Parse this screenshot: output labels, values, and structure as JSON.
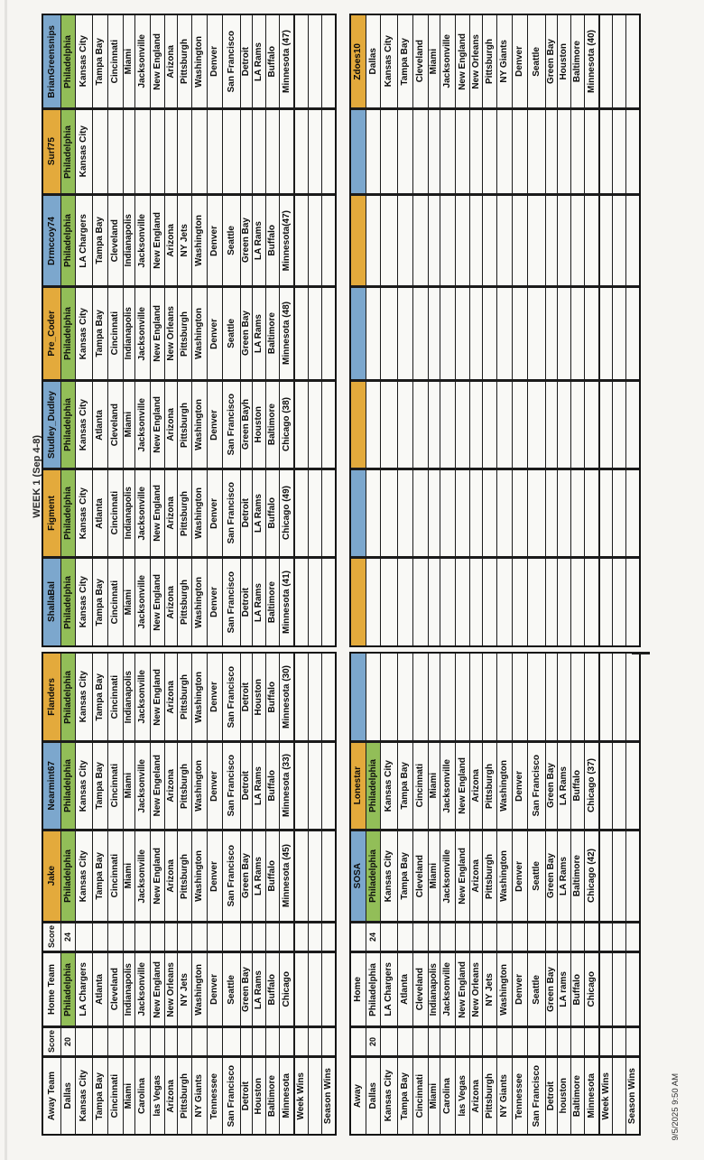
{
  "page": {
    "title": "WEEK 1 (Sep 4-8)",
    "date_stamp": "9/5/2025 9:50 AM"
  },
  "colors": {
    "header_yellow": "#e3aa3c",
    "header_blue": "#7ca7cd",
    "correct_pick_green": "#92be58"
  },
  "winning_team": "Philadelphia",
  "left_pool": {
    "away_label": "Away Team",
    "home_label": "Home Team",
    "score_label": "Score",
    "away_score": "20",
    "home_score": "24",
    "week_wins_label": "Week Wins",
    "season_wins_label": "Season Wins",
    "home_winner_highlighted": true,
    "away_teams": [
      "Dallas",
      "Kansas City",
      "Tampa Bay",
      "Cincinnati",
      "Miami",
      "Carolina",
      "las Vegas",
      "Arizona",
      "Pittsburgh",
      "NY Giants",
      "Tennessee",
      "San Francisco",
      "Detroit",
      "Houston",
      "Baltimore",
      "Minnesota"
    ],
    "home_teams": [
      "Philadelphia",
      "LA Chargers",
      "Atlanta",
      "Cleveland",
      "Indianapolis",
      "Jacksonville",
      "New England",
      "New Orleans",
      "NY Jets",
      "Washington",
      "Denver",
      "Seattle",
      "Green Bay",
      "LA Rams",
      "Buffalo",
      "Chicago"
    ],
    "pickers": [
      {
        "name": "BrianGreensnips",
        "color": "blue",
        "picks": [
          "Philadelphia",
          "Kansas City",
          "Tampa Bay",
          "Cincinnati",
          "Miami",
          "Jacksonville",
          "New England",
          "Arizona",
          "Pittsburgh",
          "Washington",
          "Denver",
          "San Francisco",
          "Detroit",
          "LA Rams",
          "Buffalo",
          "Minnesota (47)"
        ]
      },
      {
        "name": "Surf75",
        "color": "yellow",
        "picks": [
          "Philadelphia",
          "Kansas City",
          "",
          "",
          "",
          "",
          "",
          "",
          "",
          "",
          "",
          "",
          "",
          "",
          "",
          ""
        ]
      },
      {
        "name": "Drmccoy74",
        "color": "blue",
        "picks": [
          "Philadelphia",
          "LA Chargers",
          "Tampa Bay",
          "Cleveland",
          "Indianapolis",
          "Jacksonville",
          "New England",
          "Arizona",
          "NY Jets",
          "Washington",
          "Denver",
          "Seattle",
          "Green Bay",
          "LA Rams",
          "Buffalo",
          "Minnesota(47)"
        ]
      },
      {
        "name": "Pre_Coder",
        "color": "yellow",
        "picks": [
          "Philadelphia",
          "Kansas City",
          "Tampa Bay",
          "Cincinnati",
          "Indianapolis",
          "Jacksonville",
          "New England",
          "New Orleans",
          "Pittsburgh",
          "Washington",
          "Denver",
          "Seattle",
          "Green Bay",
          "LA Rams",
          "Baltimore",
          "Minnesota (48)"
        ]
      },
      {
        "name": "Studley_Dudley",
        "color": "blue",
        "picks": [
          "Philadelphia",
          "Kansas City",
          "Atlanta",
          "Cleveland",
          "Miami",
          "Jacksonville",
          "New England",
          "Arizona",
          "Pittsburgh",
          "Washington",
          "Denver",
          "San Francisco",
          "Green Bayh",
          "Houston",
          "Baltimore",
          "Chicago (38)"
        ]
      },
      {
        "name": "Figment",
        "color": "yellow",
        "picks": [
          "Philadelphia",
          "Kansas City",
          "Atlanta",
          "Cincinnati",
          "Indianapolis",
          "Jacksonville",
          "New England",
          "Arizona",
          "Pittsburgh",
          "Washington",
          "Denver",
          "San Francisco",
          "Detroit",
          "LA Rams",
          "Buffalo",
          "Chicago (49)"
        ]
      },
      {
        "name": "ShallaBal",
        "color": "blue",
        "picks": [
          "Philadelphia",
          "Kansas City",
          "Tampa Bay",
          "Cincinnati",
          "Miami",
          "Jacksonville",
          "New England",
          "Arizona",
          "Pittsburgh",
          "Washington",
          "Denver",
          "San Francisco",
          "Detroit",
          "LA Rams",
          "Baltimore",
          "Minnesota (41)"
        ]
      },
      {
        "name": "Flanders",
        "color": "yellow",
        "picks": [
          "Philadelphia",
          "Kansas City",
          "Tampa Bay",
          "Cincinnati",
          "Indianapolis",
          "Jacksonville",
          "New England",
          "Arizona",
          "Pittsburgh",
          "Washington",
          "Denver",
          "San Francisco",
          "Detroit",
          "Houston",
          "Buffalo",
          "Minnesota (30)"
        ]
      },
      {
        "name": "Nearmint67",
        "color": "blue",
        "picks": [
          "Philadelphia",
          "Kansas City",
          "Tampa Bay",
          "Cincinnati",
          "Miami",
          "Jacksonville",
          "New Engeland",
          "Arizona",
          "Pittsburgh",
          "Washington",
          "Denver",
          "San Francisco",
          "Detroit",
          "LA Rams",
          "Buffalo",
          "Minnesota (33)"
        ]
      },
      {
        "name": "Jake",
        "color": "yellow",
        "picks": [
          "Philadelphia",
          "Kansas City",
          "Tampa Bay",
          "Cincinnati",
          "Miami",
          "Jacksonville",
          "New England",
          "Arizona",
          "Pittsburgh",
          "Washington",
          "Denver",
          "San Francisco",
          "Green Bay",
          "LA Rams",
          "Buffalo",
          "Minnesota (45)"
        ]
      }
    ]
  },
  "right_pool": {
    "away_label": "Away",
    "home_label": "Home",
    "score_label": "",
    "away_score": "20",
    "home_score": "24",
    "week_wins_label": "Week Wins",
    "season_wins_label": "Season Wins",
    "home_winner_highlighted": false,
    "away_teams": [
      "Dallas",
      "Kansas City",
      "Tampa Bay",
      "Cincinnati",
      "Miami",
      "Carolina",
      "las Vegas",
      "Arizona",
      "Pittsburgh",
      "NY Giants",
      "Tennessee",
      "San Francisco",
      "Detroit",
      "houston",
      "Baltimore",
      "Minnesota"
    ],
    "home_teams": [
      "Philadelphia",
      "LA Chargers",
      "Atlanta",
      "Cleveland",
      "Indianapolis",
      "Jacksonville",
      "New England",
      "New Orleans",
      "NY Jets",
      "Washington",
      "Denver",
      "Seattle",
      "Green Bay",
      "LA rams",
      "Buffalo",
      "Chicago"
    ],
    "pickers": [
      {
        "name": "Zdoes10",
        "color": "yellow",
        "picks": [
          "Dallas",
          "Kansas City",
          "Tampa Bay",
          "Cleveland",
          "Miami",
          "Jacksonville",
          "New England",
          "New Orleans",
          "Pittsburgh",
          "NY Giants",
          "Denver",
          "Seattle",
          "Green Bay",
          "Houston",
          "Baltimore",
          "Minnesota (40)"
        ]
      },
      {
        "name": "",
        "color": "blue",
        "picks": [
          "",
          "",
          "",
          "",
          "",
          "",
          "",
          "",
          "",
          "",
          "",
          "",
          "",
          "",
          "",
          ""
        ]
      },
      {
        "name": "",
        "color": "yellow",
        "picks": [
          "",
          "",
          "",
          "",
          "",
          "",
          "",
          "",
          "",
          "",
          "",
          "",
          "",
          "",
          "",
          ""
        ]
      },
      {
        "name": "",
        "color": "blue",
        "picks": [
          "",
          "",
          "",
          "",
          "",
          "",
          "",
          "",
          "",
          "",
          "",
          "",
          "",
          "",
          "",
          ""
        ]
      },
      {
        "name": "",
        "color": "yellow",
        "picks": [
          "",
          "",
          "",
          "",
          "",
          "",
          "",
          "",
          "",
          "",
          "",
          "",
          "",
          "",
          "",
          ""
        ]
      },
      {
        "name": "",
        "color": "blue",
        "picks": [
          "",
          "",
          "",
          "",
          "",
          "",
          "",
          "",
          "",
          "",
          "",
          "",
          "",
          "",
          "",
          ""
        ]
      },
      {
        "name": "",
        "color": "yellow",
        "picks": [
          "",
          "",
          "",
          "",
          "",
          "",
          "",
          "",
          "",
          "",
          "",
          "",
          "",
          "",
          "",
          ""
        ]
      },
      {
        "name": "",
        "color": "blue",
        "picks": [
          "",
          "",
          "",
          "",
          "",
          "",
          "",
          "",
          "",
          "",
          "",
          "",
          "",
          "",
          "",
          ""
        ]
      },
      {
        "name": "Lonestar",
        "color": "yellow",
        "picks": [
          "Philadelphia",
          "Kansas City",
          "Tampa Bay",
          "Cincinnati",
          "Miami",
          "Jacksonville",
          "New England",
          "Arizona",
          "Pittsburgh",
          "Washington",
          "Denver",
          "San Francisco",
          "Green Bay",
          "LA Rams",
          "Buffalo",
          "Chicago (37)"
        ]
      },
      {
        "name": "SOSA",
        "color": "blue",
        "picks": [
          "Philadelphia",
          "Kansas City",
          "Tampa Bay",
          "Cleveland",
          "Miami",
          "Jacksonville",
          "New England",
          "Arizona",
          "Pittsburgh",
          "Washington",
          "Denver",
          "Seattle",
          "Green Bay",
          "LA Rams",
          "Baltimore",
          "Chicago (42)"
        ]
      }
    ]
  }
}
